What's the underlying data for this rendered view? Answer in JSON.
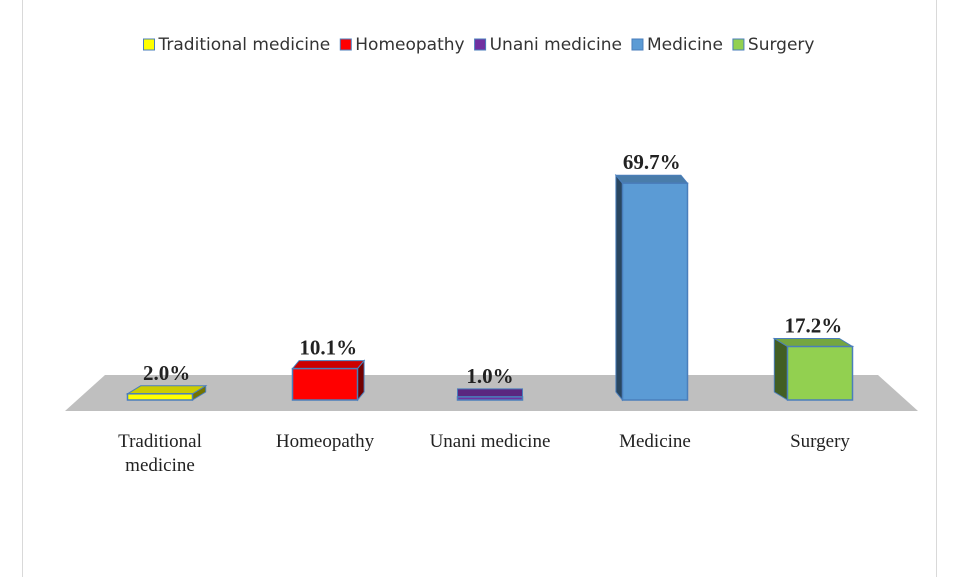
{
  "chart_data": {
    "type": "bar3d",
    "categories": [
      "Traditional medicine",
      "Homeopathy",
      "Unani medicine",
      "Medicine",
      "Surgery"
    ],
    "values": [
      2.0,
      10.1,
      1.0,
      69.7,
      17.2
    ],
    "value_labels": [
      "2.0%",
      "10.1%",
      "1.0%",
      "69.7%",
      "17.2%"
    ],
    "colors": [
      "#ffff00",
      "#ff0000",
      "#7030a0",
      "#5b9bd5",
      "#92d050"
    ],
    "legend": "top"
  }
}
